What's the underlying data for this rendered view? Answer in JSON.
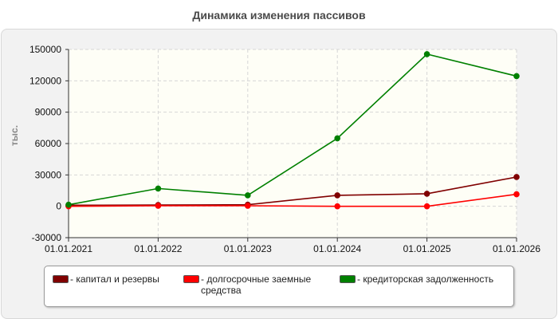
{
  "chart_data": {
    "type": "line",
    "title": "Динамика изменения пассивов",
    "ylabel": "тыс.",
    "xlabel": "",
    "categories": [
      "01.01.2021",
      "01.01.2022",
      "01.01.2023",
      "01.01.2024",
      "01.01.2025",
      "01.01.2026"
    ],
    "ylim": [
      -30000,
      150000
    ],
    "yticks": [
      -30000,
      0,
      30000,
      60000,
      90000,
      120000,
      150000
    ],
    "grid": true,
    "legend_position": "bottom",
    "series": [
      {
        "name": "- капитал и резервы",
        "color": "#800000",
        "values": [
          1000,
          1200,
          1500,
          10500,
          12000,
          28000
        ]
      },
      {
        "name": "- долгосрочные заемные средства",
        "color": "#ff0000",
        "values": [
          0,
          500,
          500,
          0,
          0,
          11500
        ]
      },
      {
        "name": "- кредиторская задолженность",
        "color": "#008000",
        "values": [
          1500,
          17000,
          10500,
          65000,
          145500,
          124500
        ]
      }
    ]
  }
}
